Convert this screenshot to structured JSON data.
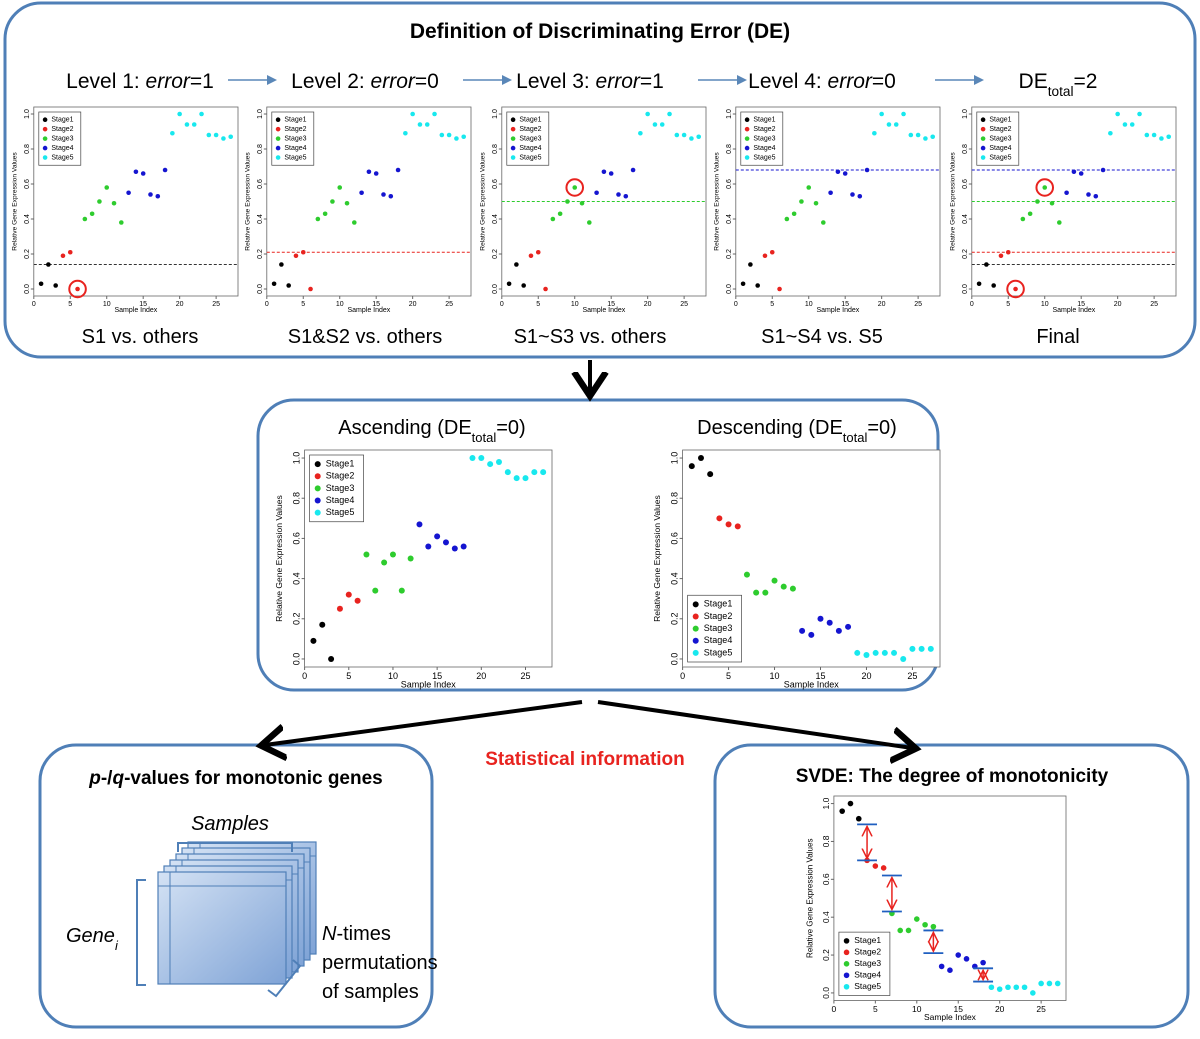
{
  "title": "Definition of Discriminating Error (DE)",
  "axes": {
    "x_label": "Sample Index",
    "y_label": "Relative Gene Expression Values",
    "xlim": [
      0,
      28
    ],
    "ylim": [
      -0.04,
      1.04
    ],
    "xticks": [
      0,
      5,
      10,
      15,
      20,
      25
    ],
    "yticks": [
      {
        "value": 0,
        "label": "0.0"
      },
      0.2,
      0.4,
      0.6,
      0.8,
      {
        "value": 1,
        "label": "1.0"
      }
    ]
  },
  "level_data": {
    "series": [
      {
        "name": "Stage1",
        "color": "#000000",
        "x": [
          1,
          2,
          3
        ],
        "y": [
          0.03,
          0.14,
          0.02
        ]
      },
      {
        "name": "Stage2",
        "color": "#e8231f",
        "x": [
          4,
          5,
          6
        ],
        "y": [
          0.19,
          0.21,
          0.0
        ]
      },
      {
        "name": "Stage3",
        "color": "#2ecc2e",
        "x": [
          7,
          8,
          9,
          10,
          11,
          12
        ],
        "y": [
          0.4,
          0.43,
          0.5,
          0.58,
          0.49,
          0.38
        ]
      },
      {
        "name": "Stage4",
        "color": "#1515d0",
        "x": [
          13,
          14,
          15,
          16,
          17,
          18
        ],
        "y": [
          0.55,
          0.67,
          0.66,
          0.54,
          0.53,
          0.68
        ]
      },
      {
        "name": "Stage5",
        "color": "#18e8ee",
        "x": [
          19,
          20,
          21,
          22,
          23,
          24,
          25,
          26,
          27
        ],
        "y": [
          0.89,
          1.0,
          0.94,
          0.94,
          1.0,
          0.88,
          0.88,
          0.86,
          0.87
        ]
      }
    ],
    "legend": "upper left"
  },
  "levels": [
    {
      "heading": [
        "Level 1: ",
        {
          "text": "error",
          "style": "italic"
        },
        "=1"
      ],
      "caption": "S1 vs. others",
      "thresholds": [
        {
          "value": 0.14,
          "color": "#333333"
        }
      ],
      "circled": [
        [
          1,
          2
        ]
      ]
    },
    {
      "heading": [
        "Level 2: ",
        {
          "text": "error",
          "style": "italic"
        },
        "=0"
      ],
      "caption": "S1&S2 vs. others",
      "thresholds": [
        {
          "value": 0.21,
          "color": "#e8231f"
        }
      ],
      "circled": []
    },
    {
      "heading": [
        "Level 3: ",
        {
          "text": "error",
          "style": "italic"
        },
        "=1"
      ],
      "caption": "S1~S3 vs. others",
      "thresholds": [
        {
          "value": 0.5,
          "color": "#2ecc2e"
        }
      ],
      "circled": [
        [
          2,
          3
        ]
      ]
    },
    {
      "heading": [
        "Level 4: ",
        {
          "text": "error",
          "style": "italic"
        },
        "=0"
      ],
      "caption": "S1~S4 vs. S5",
      "thresholds": [
        {
          "value": 0.68,
          "color": "#1515d0"
        }
      ],
      "circled": []
    },
    {
      "heading": [
        "DE",
        {
          "text": "total",
          "style": "sub"
        },
        "=2"
      ],
      "caption": "Final",
      "thresholds": [
        {
          "value": 0.14,
          "color": "#333333"
        },
        {
          "value": 0.21,
          "color": "#e8231f"
        },
        {
          "value": 0.5,
          "color": "#2ecc2e"
        },
        {
          "value": 0.68,
          "color": "#1515d0"
        }
      ],
      "circled": [
        [
          1,
          2
        ],
        [
          2,
          3
        ]
      ]
    }
  ],
  "ascending": {
    "heading": [
      "Ascending  (DE",
      {
        "text": "total",
        "style": "sub"
      },
      "=0)"
    ],
    "legend": "upper left",
    "series": [
      {
        "name": "Stage1",
        "color": "#000000",
        "x": [
          1,
          2,
          3
        ],
        "y": [
          0.09,
          0.17,
          0.0
        ]
      },
      {
        "name": "Stage2",
        "color": "#e8231f",
        "x": [
          4,
          5,
          6
        ],
        "y": [
          0.25,
          0.32,
          0.29
        ]
      },
      {
        "name": "Stage3",
        "color": "#2ecc2e",
        "x": [
          7,
          8,
          9,
          10,
          11,
          12
        ],
        "y": [
          0.52,
          0.34,
          0.48,
          0.52,
          0.34,
          0.5
        ]
      },
      {
        "name": "Stage4",
        "color": "#1515d0",
        "x": [
          13,
          14,
          15,
          16,
          17,
          18
        ],
        "y": [
          0.67,
          0.56,
          0.61,
          0.58,
          0.55,
          0.56
        ]
      },
      {
        "name": "Stage5",
        "color": "#18e8ee",
        "x": [
          19,
          20,
          21,
          22,
          23,
          24,
          25,
          26,
          27
        ],
        "y": [
          1.0,
          1.0,
          0.97,
          0.98,
          0.93,
          0.9,
          0.9,
          0.93,
          0.93
        ]
      }
    ]
  },
  "descending": {
    "heading": [
      "Descending  (DE",
      {
        "text": "total",
        "style": "sub"
      },
      "=0)"
    ],
    "legend": "lower left",
    "series": [
      {
        "name": "Stage1",
        "color": "#000000",
        "x": [
          1,
          2,
          3
        ],
        "y": [
          0.96,
          1.0,
          0.92
        ]
      },
      {
        "name": "Stage2",
        "color": "#e8231f",
        "x": [
          4,
          5,
          6
        ],
        "y": [
          0.7,
          0.67,
          0.66
        ]
      },
      {
        "name": "Stage3",
        "color": "#2ecc2e",
        "x": [
          7,
          8,
          9,
          10,
          11,
          12
        ],
        "y": [
          0.42,
          0.33,
          0.33,
          0.39,
          0.36,
          0.35
        ]
      },
      {
        "name": "Stage4",
        "color": "#1515d0",
        "x": [
          13,
          14,
          15,
          16,
          17,
          18
        ],
        "y": [
          0.14,
          0.12,
          0.2,
          0.18,
          0.14,
          0.16
        ]
      },
      {
        "name": "Stage5",
        "color": "#18e8ee",
        "x": [
          19,
          20,
          21,
          22,
          23,
          24,
          25,
          26,
          27
        ],
        "y": [
          0.03,
          0.02,
          0.03,
          0.03,
          0.03,
          0.0,
          0.05,
          0.05,
          0.05
        ]
      }
    ]
  },
  "statistical_info": "Statistical information",
  "pq_panel": {
    "title": [
      {
        "text": "p",
        "style": "italic"
      },
      "-/",
      {
        "text": "q",
        "style": "italic"
      },
      "-values for monotonic genes"
    ],
    "samples": "Samples",
    "gene": [
      "Gene",
      {
        "text": "i",
        "style": "sub"
      }
    ],
    "permutations": [
      [
        {
          "text": "N",
          "style": "italic"
        },
        "-times"
      ],
      [
        "permutations"
      ],
      [
        "of samples"
      ]
    ]
  },
  "svde": {
    "title": "SVDE: The degree of monotonicity",
    "legend": "lower left",
    "gaps": [
      {
        "x": 4,
        "upper": 0.89,
        "lower": 0.7
      },
      {
        "x": 7,
        "upper": 0.62,
        "lower": 0.43
      },
      {
        "x": 12,
        "upper": 0.33,
        "lower": 0.21
      },
      {
        "x": 18,
        "upper": 0.13,
        "lower": 0.06
      }
    ]
  }
}
